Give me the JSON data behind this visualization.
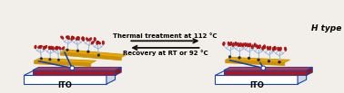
{
  "bg_color": "#f2eeea",
  "ito_label": "ITO",
  "arrow_text1": "Thermal treatment at 112 °C",
  "arrow_text2": "Recovery at RT or 92 °C",
  "h_type_label": "H type",
  "white_color": "#dce8f0",
  "blue_border": "#1a44aa",
  "ito_red_color": "#bb1111",
  "ito_red_top": "#cc3333",
  "gold_color": "#e8a800",
  "gold_edge": "#c8900a",
  "stem_color": "#99bbdd",
  "tip_color": "#cc1111",
  "tip_edge": "#880000",
  "dot_color": "#222244",
  "arrow_color": "#111111",
  "label_fontsize": 6.0,
  "arrow_fontsize": 5.0
}
